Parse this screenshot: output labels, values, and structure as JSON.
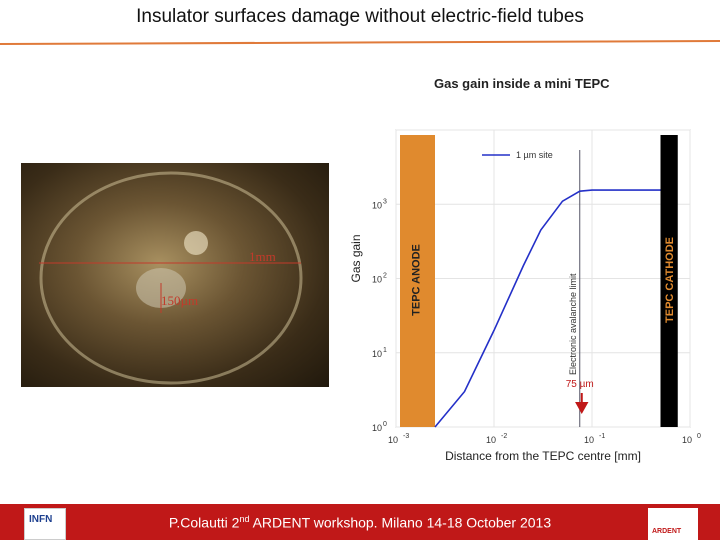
{
  "slide": {
    "title": "Insulator surfaces damage without electric-field tubes"
  },
  "photo": {
    "label_top": "1mm",
    "label_bottom": "150µm"
  },
  "chart_data": {
    "type": "line",
    "title": "Gas gain inside a mini TEPC",
    "xlabel": "Distance from the TEPC centre [mm]",
    "ylabel": "Gas gain",
    "xscale": "log",
    "yscale": "log",
    "xlim": [
      0.001,
      1
    ],
    "ylim": [
      1,
      10000
    ],
    "x_ticks": [
      "10",
      "10",
      "10",
      "10"
    ],
    "x_tick_exps": [
      "-3",
      "-2",
      "-1",
      "0"
    ],
    "y_ticks": [
      "10",
      "10",
      "10",
      "10"
    ],
    "y_tick_exps": [
      "0",
      "1",
      "2",
      "3"
    ],
    "series": [
      {
        "name": "1 µm site",
        "x": [
          0.0025,
          0.005,
          0.01,
          0.02,
          0.03,
          0.05,
          0.075,
          0.1,
          0.2,
          0.5
        ],
        "y": [
          1,
          3,
          20,
          150,
          450,
          1100,
          1500,
          1550,
          1550,
          1550
        ]
      }
    ],
    "regions": [
      {
        "label": "TEPC ANODE",
        "x_from": 0.001,
        "x_to": 0.0025,
        "color": "#e08a2e"
      },
      {
        "label": "TEPC CATHODE",
        "x_from": 0.5,
        "x_to": 0.75,
        "color": "#000000"
      }
    ],
    "annotations": [
      {
        "label": "Electronic avalanche limit",
        "x": 0.075
      },
      {
        "label": "75 µm",
        "x": 0.075
      }
    ]
  },
  "footer": {
    "text_pre": "P.Colautti 2",
    "text_sup": "nd",
    "text_post": " ARDENT workshop. Milano 14-18 October 2013",
    "logo_left": "INFN",
    "logo_right": "ARDENT"
  },
  "colors": {
    "accent": "#c01818",
    "anode": "#e08a2e",
    "curve": "#2430c8"
  }
}
